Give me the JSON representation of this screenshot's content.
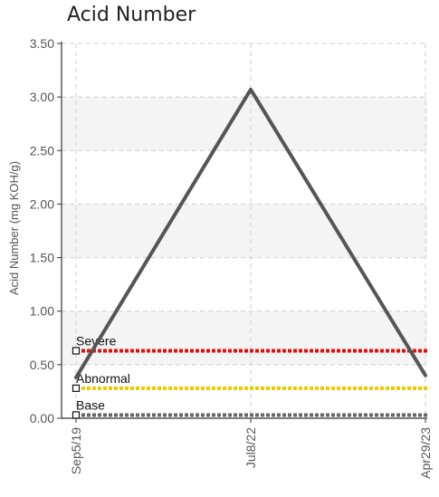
{
  "chart_data": {
    "type": "line",
    "title": "Acid Number",
    "ylabel": "Acid Number (mg KOH/g)",
    "xlabel": "",
    "ylim": [
      0,
      3.5
    ],
    "yticks": [
      "0.00",
      "0.50",
      "1.00",
      "1.50",
      "2.00",
      "2.50",
      "3.00",
      "3.50"
    ],
    "categories": [
      "Sep5/19",
      "Jul8/22",
      "Apr29/23"
    ],
    "series": [
      {
        "values": [
          0.38,
          3.07,
          0.4
        ],
        "color": "#555555"
      }
    ],
    "reference_lines": [
      {
        "name": "Severe",
        "value": 0.63,
        "color": "#e01010"
      },
      {
        "name": "Abnormal",
        "value": 0.28,
        "color": "#f0c800"
      },
      {
        "name": "Base",
        "value": 0.03,
        "color": "#666666"
      }
    ],
    "grid": true
  }
}
